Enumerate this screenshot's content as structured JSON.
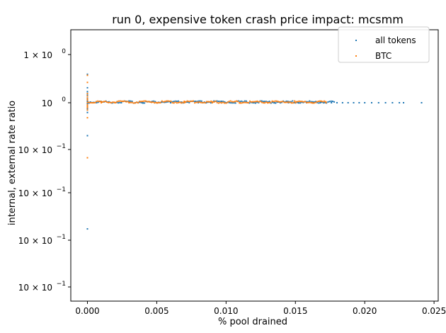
{
  "chart_data": {
    "type": "scatter",
    "title": "run 0, expensive token crash price impact: mcsmm",
    "xlabel": "% pool drained",
    "ylabel": "internal, external rate ratio",
    "xlim": [
      -0.0012,
      0.0253
    ],
    "y_scale": "log",
    "x_ticks": [
      {
        "value": 0.0,
        "label": "0.000"
      },
      {
        "value": 0.005,
        "label": "0.005"
      },
      {
        "value": 0.01,
        "label": "0.010"
      },
      {
        "value": 0.015,
        "label": "0.015"
      },
      {
        "value": 0.02,
        "label": "0.020"
      },
      {
        "value": 0.025,
        "label": "0.025"
      }
    ],
    "y_ticks": [
      {
        "level": 0,
        "base": "1 × 10",
        "exp": "0"
      },
      {
        "level": 1,
        "base": "10",
        "exp": "0"
      },
      {
        "level": 2,
        "base": "10 × 10",
        "exp": "−1"
      },
      {
        "level": 3,
        "base": "10 × 10",
        "exp": "−1"
      },
      {
        "level": 4,
        "base": "10 × 10",
        "exp": "−1"
      },
      {
        "level": 5,
        "base": "10 × 10",
        "exp": "−1"
      }
    ],
    "legend": {
      "position": "top-right"
    },
    "series": [
      {
        "name": "all tokens",
        "color": "#1f77b4",
        "x": [
          0,
          0,
          0,
          0,
          0,
          0,
          0,
          0,
          0,
          0,
          0,
          0,
          0,
          0,
          0,
          0,
          0,
          0,
          0,
          0,
          0.002,
          0.004,
          0.006,
          0.008,
          0.01,
          0.012,
          0.0135,
          0.0145,
          0.0152,
          0.0158,
          0.0163,
          0.0168,
          0.0172,
          0.0176,
          0.018,
          0.0184,
          0.0188,
          0.0192,
          0.0196,
          0.02,
          0.0205,
          0.021,
          0.0215,
          0.022,
          0.0225,
          0.0228,
          0.0241
        ],
        "y": [
          4.02,
          3.9,
          2.08,
          1.72,
          1.58,
          1.45,
          1.26,
          1.18,
          1.13,
          1.08,
          0.96,
          0.93,
          0.89,
          0.86,
          0.8,
          0.75,
          0.7,
          0.62,
          0.2,
          0.0021,
          1.0,
          1.0,
          1.0,
          1.0,
          1.0,
          1.0,
          1.0,
          1.0,
          1.0,
          1.0,
          1.0,
          1.0,
          1.0,
          1.0,
          1.0,
          1.0,
          1.0,
          1.0,
          1.0,
          1.0,
          1.0,
          1.0,
          1.0,
          1.0,
          1.0,
          1.0,
          1.0
        ]
      },
      {
        "name": "BTC",
        "color": "#ff7f0e",
        "x": [
          0,
          0,
          0,
          0,
          0,
          0,
          0,
          0,
          0,
          0,
          0,
          0,
          0.001,
          0.002,
          0.003,
          0.005,
          0.007,
          0.009,
          0.011,
          0.013,
          0.015,
          0.0162,
          0.0172
        ],
        "y": [
          3.82,
          2.7,
          1.56,
          1.38,
          1.24,
          1.14,
          0.9,
          0.84,
          0.78,
          0.7,
          0.48,
          0.068,
          1.0,
          1.0,
          1.0,
          1.0,
          1.0,
          1.0,
          1.0,
          1.0,
          1.0,
          1.0,
          1.0
        ]
      }
    ]
  }
}
